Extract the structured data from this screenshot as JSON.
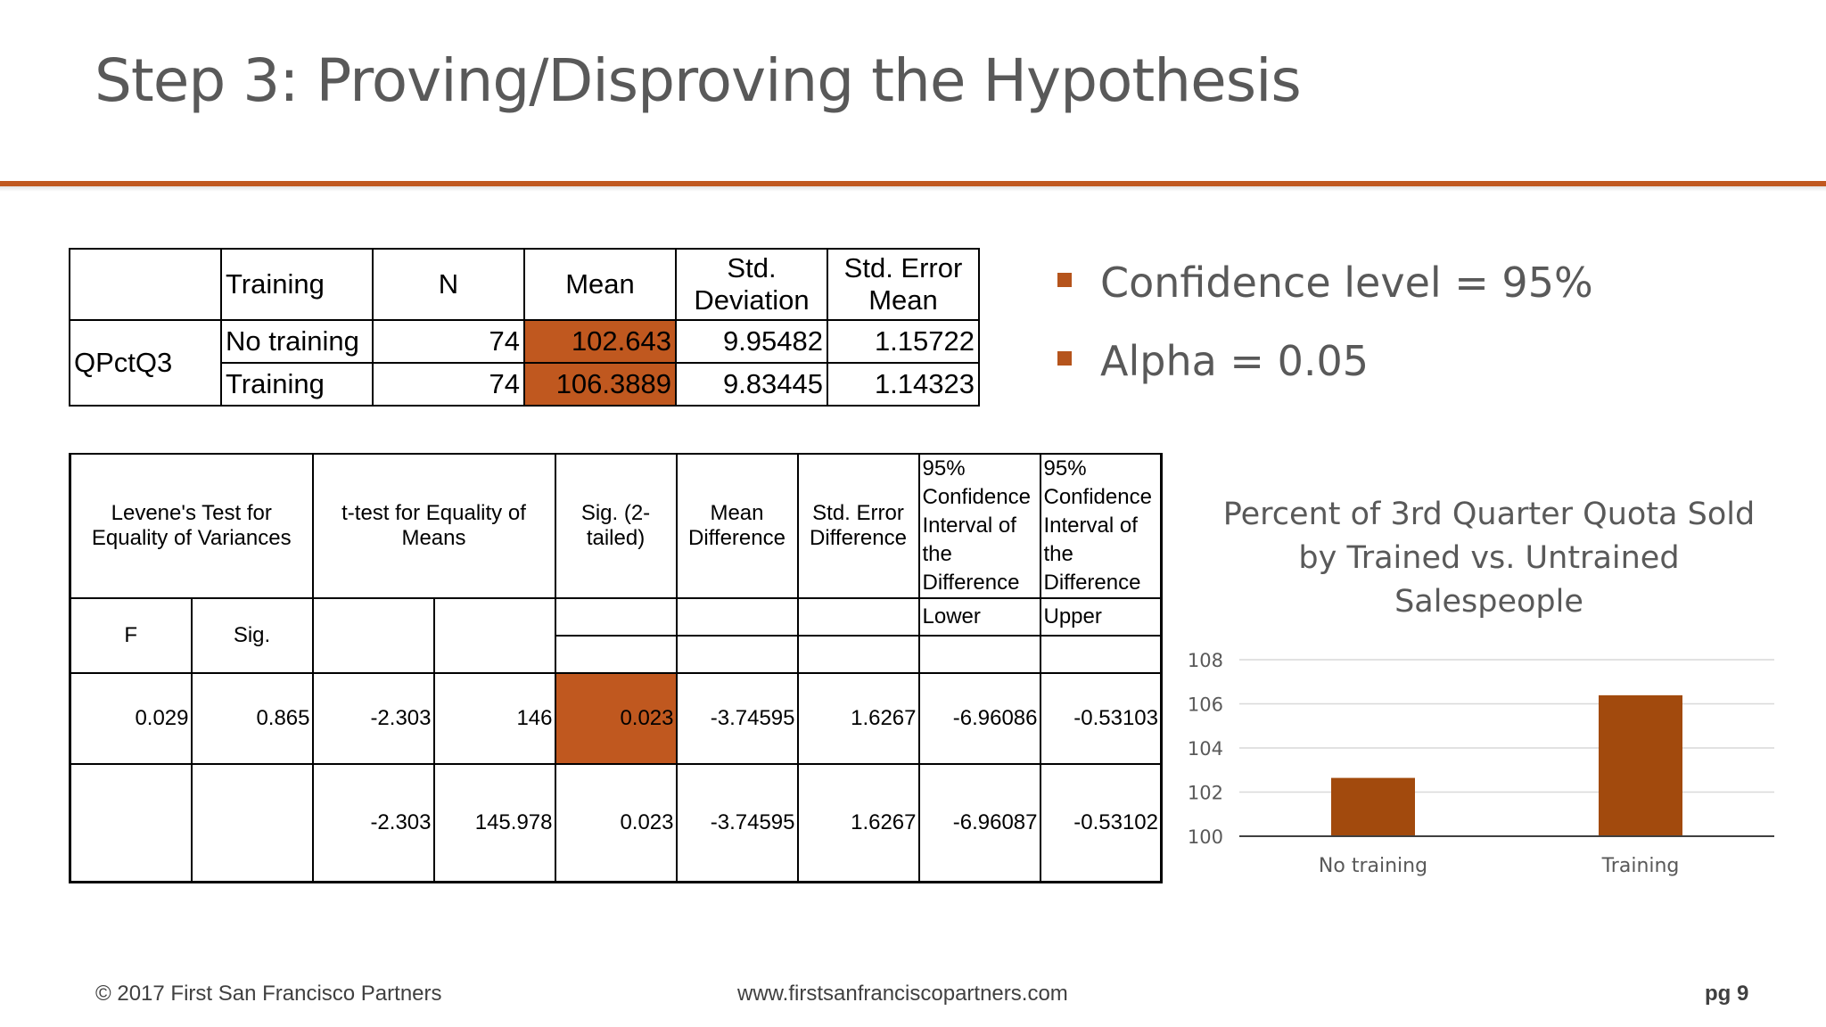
{
  "slide": {
    "title": "Step 3: Proving/Disproving the Hypothesis",
    "accent_color": "#c0581f"
  },
  "group_stats": {
    "headers": [
      "",
      "Training",
      "N",
      "Mean",
      "Std. Deviation",
      "Std. Error Mean"
    ],
    "row_label": "QPctQ3",
    "rows": [
      {
        "group": "No training",
        "n": "74",
        "mean": "102.643",
        "sd": "9.95482",
        "se": "1.15722"
      },
      {
        "group": "Training",
        "n": "74",
        "mean": "106.3889",
        "sd": "9.83445",
        "se": "1.14323"
      }
    ]
  },
  "ttest": {
    "headers": {
      "levene": "Levene's Test for Equality of Variances",
      "ttest": "t-test for Equality of Means",
      "sig": "Sig. (2-tailed)",
      "mean_diff": "Mean Difference",
      "se_diff": "Std. Error Difference",
      "ci_lower": "95% Confidence Interval of the Difference",
      "ci_upper": "95% Confidence Interval of the Difference"
    },
    "sub": {
      "f": "F",
      "sig": "Sig.",
      "lower": "Lower",
      "upper": "Upper"
    },
    "rows": [
      {
        "f": "0.029",
        "sig": "0.865",
        "t": "-2.303",
        "df": "146",
        "p": "0.023",
        "md": "-3.74595",
        "sed": "1.6267",
        "lower": "-6.96086",
        "upper": "-0.53103"
      },
      {
        "f": "",
        "sig": "",
        "t": "-2.303",
        "df": "145.978",
        "p": "0.023",
        "md": "-3.74595",
        "sed": "1.6267",
        "lower": "-6.96087",
        "upper": "-0.53102"
      }
    ]
  },
  "bullets": [
    {
      "text": "Confidence level = 95%"
    },
    {
      "text": "Alpha = 0.05"
    }
  ],
  "chart_data": {
    "type": "bar",
    "title": "Percent of 3rd Quarter Quota Sold by Trained vs. Untrained Salespeople",
    "categories": [
      "No training",
      "Training"
    ],
    "values": [
      102.643,
      106.3889
    ],
    "ylim": [
      100,
      108
    ],
    "yticks": [
      "100",
      "102",
      "104",
      "106",
      "108"
    ],
    "grid": true,
    "bar_color": "#a24a0d"
  },
  "footer": {
    "copyright": "© 2017 First San Francisco Partners",
    "url": "www.firstsanfranciscopartners.com",
    "page": "pg 9"
  }
}
